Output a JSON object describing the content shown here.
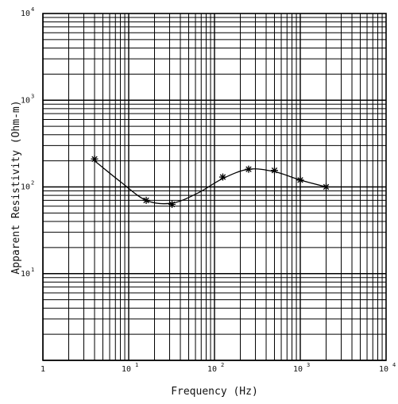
{
  "chart_data": {
    "type": "scatter",
    "title": "",
    "xlabel": "Frequency  (Hz)",
    "ylabel": "Apparent Resistivity (Ohm-m)",
    "x_scale": "log",
    "y_scale": "log",
    "xlim": [
      1,
      10000
    ],
    "ylim": [
      1,
      10000
    ],
    "grid": true,
    "x_ticks": [
      {
        "base": "1",
        "exp": ""
      },
      {
        "base": "10",
        "exp": "1"
      },
      {
        "base": "10",
        "exp": "2"
      },
      {
        "base": "10",
        "exp": "3"
      },
      {
        "base": "10",
        "exp": "4"
      }
    ],
    "y_ticks": [
      {
        "base": "10",
        "exp": "1"
      },
      {
        "base": "10",
        "exp": "2"
      },
      {
        "base": "10",
        "exp": "3"
      },
      {
        "base": "10",
        "exp": "4"
      }
    ],
    "series": [
      {
        "type": "scatter",
        "marker": "asterisk",
        "x": [
          4,
          16,
          32,
          125,
          250,
          500,
          1000,
          2000
        ],
        "y": [
          210,
          70,
          63,
          130,
          160,
          155,
          120,
          100
        ]
      },
      {
        "type": "line",
        "x": [
          4,
          8,
          16,
          32,
          64,
          125,
          250,
          500,
          1000,
          2000
        ],
        "y": [
          200,
          115,
          70,
          65,
          85,
          125,
          160,
          150,
          120,
          100
        ]
      }
    ]
  }
}
